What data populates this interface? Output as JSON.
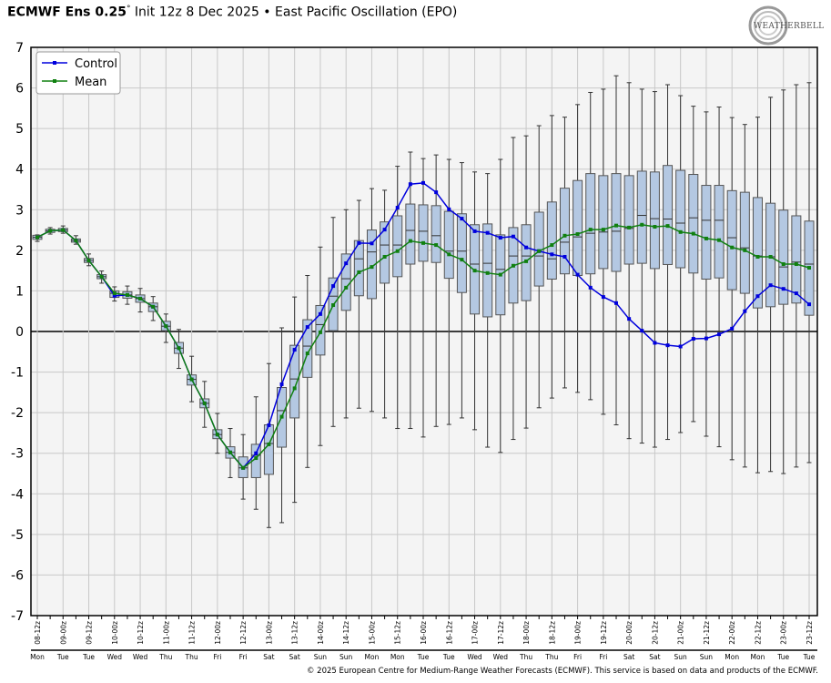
{
  "header": {
    "title_bold": "ECMWF Ens 0.25",
    "title_degree": "°",
    "title_rest": " Init 12z 8 Dec 2025 • East Pacific Oscillation (EPO)",
    "logo_text": "WEATHERBELL"
  },
  "footer": "© 2025 European Centre for Medium-Range Weather Forecasts (ECMWF). This service is based on data and products of the ECMWF.",
  "colors": {
    "control": "#0000dd",
    "mean": "#108010",
    "box_fill": "#b4c8e2",
    "box_stroke": "#555555",
    "plot_bg": "#f4f4f4",
    "grid": "#c8c8c8"
  },
  "chart_data": {
    "type": "box",
    "title": "ECMWF Ens 0.25° Init 12z 8 Dec 2025 • East Pacific Oscillation (EPO)",
    "ylim": [
      -7,
      7
    ],
    "yticks": [
      -7,
      -6,
      -5,
      -4,
      -3,
      -2,
      -1,
      0,
      1,
      2,
      3,
      4,
      5,
      6,
      7
    ],
    "grid": true,
    "legend_position": "top-left",
    "legend": [
      "Control",
      "Mean"
    ],
    "time_step_hours": 6,
    "xtick_labels": [
      "08-12z",
      "09-00z",
      "09-12z",
      "10-00z",
      "10-12z",
      "11-00z",
      "11-12z",
      "12-00z",
      "12-12z",
      "13-00z",
      "13-12z",
      "14-00z",
      "14-12z",
      "15-00z",
      "15-12z",
      "16-00z",
      "16-12z",
      "17-00z",
      "17-12z",
      "18-00z",
      "18-12z",
      "19-00z",
      "19-12z",
      "20-00z",
      "20-12z",
      "21-00z",
      "21-12z",
      "22-00z",
      "22-12z",
      "23-00z",
      "23-12z"
    ],
    "day_labels": [
      "Mon",
      "Tue",
      "Tue",
      "Wed",
      "Wed",
      "Thu",
      "Thu",
      "Fri",
      "Fri",
      "Sat",
      "Sat",
      "Sun",
      "Sun",
      "Mon",
      "Mon",
      "Tue",
      "Tue",
      "Wed",
      "Wed",
      "Thu",
      "Thu",
      "Fri",
      "Fri",
      "Sat",
      "Sat",
      "Sun",
      "Sun",
      "Mon",
      "Mon",
      "Tue",
      "Tue"
    ],
    "series": [
      {
        "name": "Control",
        "values": [
          2.32,
          2.48,
          2.5,
          2.24,
          1.75,
          1.35,
          0.88,
          0.9,
          0.81,
          0.61,
          0.13,
          -0.41,
          -1.18,
          -1.77,
          -2.54,
          -2.98,
          -3.36,
          -3.0,
          -2.31,
          -1.3,
          -0.45,
          0.11,
          0.43,
          1.12,
          1.68,
          2.18,
          2.17,
          2.51,
          3.05,
          3.63,
          3.66,
          3.43,
          3.01,
          2.78,
          2.47,
          2.43,
          2.31,
          2.34,
          2.07,
          1.98,
          1.9,
          1.84,
          1.4,
          1.08,
          0.85,
          0.7,
          0.31,
          0.02,
          -0.28,
          -0.34,
          -0.37,
          -0.18,
          -0.17,
          -0.07,
          0.07,
          0.5,
          0.87,
          1.14,
          1.05,
          0.94,
          0.67
        ]
      },
      {
        "name": "Mean",
        "values": [
          2.32,
          2.48,
          2.5,
          2.24,
          1.75,
          1.35,
          0.94,
          0.9,
          0.81,
          0.61,
          0.13,
          -0.41,
          -1.18,
          -1.77,
          -2.54,
          -2.98,
          -3.36,
          -3.12,
          -2.78,
          -2.1,
          -1.4,
          -0.54,
          -0.02,
          0.65,
          1.08,
          1.46,
          1.59,
          1.84,
          1.98,
          2.23,
          2.18,
          2.13,
          1.9,
          1.77,
          1.5,
          1.44,
          1.4,
          1.62,
          1.73,
          1.98,
          2.13,
          2.36,
          2.4,
          2.51,
          2.51,
          2.61,
          2.56,
          2.63,
          2.58,
          2.6,
          2.45,
          2.41,
          2.29,
          2.25,
          2.07,
          2.0,
          1.84,
          1.84,
          1.66,
          1.66,
          1.57
        ]
      }
    ],
    "box": {
      "whisker_min": [
        2.22,
        2.4,
        2.42,
        2.15,
        1.62,
        1.19,
        0.75,
        0.67,
        0.48,
        0.27,
        -0.27,
        -0.91,
        -1.73,
        -2.36,
        -3.0,
        -3.6,
        -4.13,
        -4.38,
        -4.83,
        -4.71,
        -4.21,
        -3.35,
        -2.81,
        -2.34,
        -2.13,
        -1.89,
        -1.97,
        -2.13,
        -2.39,
        -2.39,
        -2.6,
        -2.34,
        -2.29,
        -2.13,
        -2.42,
        -2.85,
        -2.98,
        -2.66,
        -2.38,
        -1.88,
        -1.64,
        -1.39,
        -1.5,
        -1.68,
        -2.04,
        -2.3,
        -2.64,
        -2.75,
        -2.85,
        -2.66,
        -2.49,
        -2.22,
        -2.58,
        -2.84,
        -3.16,
        -3.34,
        -3.48,
        -3.45,
        -3.5,
        -3.34,
        -3.23
      ],
      "q1": [
        2.27,
        2.44,
        2.46,
        2.2,
        1.7,
        1.3,
        0.84,
        0.82,
        0.72,
        0.49,
        0.02,
        -0.54,
        -1.32,
        -1.88,
        -2.64,
        -3.12,
        -3.6,
        -3.6,
        -3.52,
        -2.85,
        -2.13,
        -1.13,
        -0.58,
        0.02,
        0.52,
        0.88,
        0.81,
        1.19,
        1.35,
        1.66,
        1.73,
        1.7,
        1.31,
        0.96,
        0.43,
        0.36,
        0.41,
        0.7,
        0.76,
        1.12,
        1.29,
        1.42,
        1.38,
        1.42,
        1.55,
        1.48,
        1.66,
        1.68,
        1.55,
        1.65,
        1.57,
        1.44,
        1.29,
        1.32,
        1.03,
        0.94,
        0.58,
        0.61,
        0.67,
        0.7,
        0.4
      ],
      "median": [
        2.32,
        2.48,
        2.5,
        2.24,
        1.75,
        1.35,
        0.94,
        0.9,
        0.81,
        0.61,
        0.13,
        -0.41,
        -1.18,
        -1.77,
        -2.54,
        -2.98,
        -3.36,
        -3.05,
        -2.76,
        -1.95,
        -1.17,
        -0.36,
        0.17,
        0.87,
        1.3,
        1.79,
        1.96,
        2.13,
        2.13,
        2.49,
        2.47,
        2.36,
        1.98,
        1.98,
        1.66,
        1.68,
        1.53,
        1.86,
        1.86,
        1.86,
        1.79,
        2.2,
        2.33,
        2.42,
        2.45,
        2.47,
        2.54,
        2.86,
        2.78,
        2.77,
        2.67,
        2.8,
        2.74,
        2.74,
        2.31,
        2.06,
        1.86,
        1.84,
        1.59,
        1.71,
        1.66
      ],
      "q3": [
        2.37,
        2.52,
        2.54,
        2.28,
        1.8,
        1.4,
        1.0,
        0.98,
        0.9,
        0.7,
        0.25,
        -0.27,
        -1.07,
        -1.66,
        -2.42,
        -2.84,
        -3.09,
        -2.78,
        -2.3,
        -1.38,
        -0.34,
        0.29,
        0.64,
        1.32,
        1.91,
        2.24,
        2.5,
        2.7,
        2.85,
        3.14,
        3.12,
        3.1,
        2.96,
        2.9,
        2.63,
        2.65,
        2.38,
        2.56,
        2.63,
        2.94,
        3.19,
        3.53,
        3.72,
        3.89,
        3.84,
        3.89,
        3.84,
        3.95,
        3.93,
        4.09,
        3.97,
        3.87,
        3.6,
        3.6,
        3.47,
        3.43,
        3.3,
        3.16,
        2.99,
        2.85,
        2.72
      ],
      "whisker_max": [
        2.38,
        2.56,
        2.6,
        2.36,
        1.91,
        1.49,
        1.1,
        1.12,
        1.06,
        0.86,
        0.43,
        0.05,
        -0.61,
        -1.23,
        -2.02,
        -2.39,
        -2.54,
        -1.61,
        -0.79,
        0.09,
        0.85,
        1.38,
        2.08,
        2.81,
        3.0,
        3.23,
        3.52,
        3.48,
        4.07,
        4.42,
        4.26,
        4.35,
        4.24,
        4.16,
        3.93,
        3.89,
        4.24,
        4.78,
        4.82,
        5.07,
        5.32,
        5.28,
        5.59,
        5.89,
        5.97,
        6.3,
        6.13,
        5.97,
        5.91,
        6.08,
        5.81,
        5.55,
        5.41,
        5.53,
        5.27,
        5.1,
        5.28,
        5.77,
        5.95,
        6.08,
        6.13
      ]
    }
  }
}
